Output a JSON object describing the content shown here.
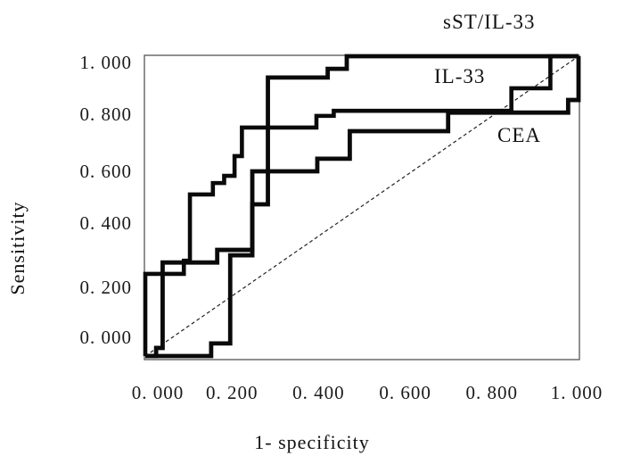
{
  "axes": {
    "ylabel": "Sensitivity",
    "xlabel": "1- specificity",
    "x_tick_labels": [
      "0. 000",
      "0. 200",
      "0. 400",
      "0. 600",
      "0. 800",
      "1. 000"
    ],
    "y_tick_labels": [
      "1. 000",
      "0. 800",
      "0. 600",
      "0. 400",
      "0. 200",
      "0. 000"
    ]
  },
  "annotations": {
    "curve1_label": "sST/IL-33",
    "curve2_label": "IL-33",
    "curve3_label": "CEA"
  },
  "colors": {
    "curve": "#0a0a0a",
    "border": "#555555",
    "diagonal": "#222222",
    "text": "#1a1a1a"
  },
  "chart_data": {
    "type": "line",
    "subtype": "roc-step-curves",
    "xlabel": "1- specificity",
    "ylabel": "Sensitivity",
    "xlim": [
      0,
      1
    ],
    "ylim": [
      0,
      1
    ],
    "x_ticks": [
      0.0,
      0.2,
      0.4,
      0.6,
      0.8,
      1.0
    ],
    "y_ticks": [
      0.0,
      0.2,
      0.4,
      0.6,
      0.8,
      1.0
    ],
    "grid": false,
    "legend_position": "labels-inside-plot",
    "reference_diagonal": [
      [
        0,
        0
      ],
      [
        1,
        1
      ]
    ],
    "series": [
      {
        "name": "sST/IL-33",
        "points": [
          [
            0,
            0
          ],
          [
            0.152,
            0
          ],
          [
            0.152,
            0.042
          ],
          [
            0.196,
            0.042
          ],
          [
            0.196,
            0.336
          ],
          [
            0.247,
            0.336
          ],
          [
            0.247,
            0.506
          ],
          [
            0.283,
            0.506
          ],
          [
            0.283,
            0.929
          ],
          [
            0.421,
            0.929
          ],
          [
            0.421,
            0.958
          ],
          [
            0.465,
            0.958
          ],
          [
            0.465,
            1.0
          ],
          [
            1.0,
            1.0
          ]
        ]
      },
      {
        "name": "IL-33",
        "points": [
          [
            0,
            0
          ],
          [
            0,
            0.274
          ],
          [
            0.089,
            0.274
          ],
          [
            0.089,
            0.318
          ],
          [
            0.103,
            0.318
          ],
          [
            0.103,
            0.539
          ],
          [
            0.156,
            0.539
          ],
          [
            0.156,
            0.577
          ],
          [
            0.182,
            0.577
          ],
          [
            0.182,
            0.601
          ],
          [
            0.206,
            0.601
          ],
          [
            0.206,
            0.667
          ],
          [
            0.223,
            0.667
          ],
          [
            0.223,
            0.762
          ],
          [
            0.395,
            0.762
          ],
          [
            0.395,
            0.801
          ],
          [
            0.435,
            0.801
          ],
          [
            0.435,
            0.818
          ],
          [
            0.577,
            0.818
          ],
          [
            0.845,
            0.818
          ],
          [
            0.845,
            0.893
          ],
          [
            0.935,
            0.893
          ],
          [
            0.935,
            1.0
          ],
          [
            1.0,
            1.0
          ]
        ]
      },
      {
        "name": "CEA",
        "points": [
          [
            0,
            0
          ],
          [
            0.025,
            0
          ],
          [
            0.025,
            0.027
          ],
          [
            0.04,
            0.027
          ],
          [
            0.04,
            0.312
          ],
          [
            0.166,
            0.312
          ],
          [
            0.166,
            0.354
          ],
          [
            0.247,
            0.354
          ],
          [
            0.247,
            0.616
          ],
          [
            0.397,
            0.616
          ],
          [
            0.397,
            0.658
          ],
          [
            0.472,
            0.658
          ],
          [
            0.472,
            0.75
          ],
          [
            0.699,
            0.75
          ],
          [
            0.699,
            0.812
          ],
          [
            0.976,
            0.812
          ],
          [
            0.976,
            0.854
          ],
          [
            1.0,
            0.854
          ],
          [
            1.0,
            1.0
          ]
        ]
      }
    ]
  }
}
